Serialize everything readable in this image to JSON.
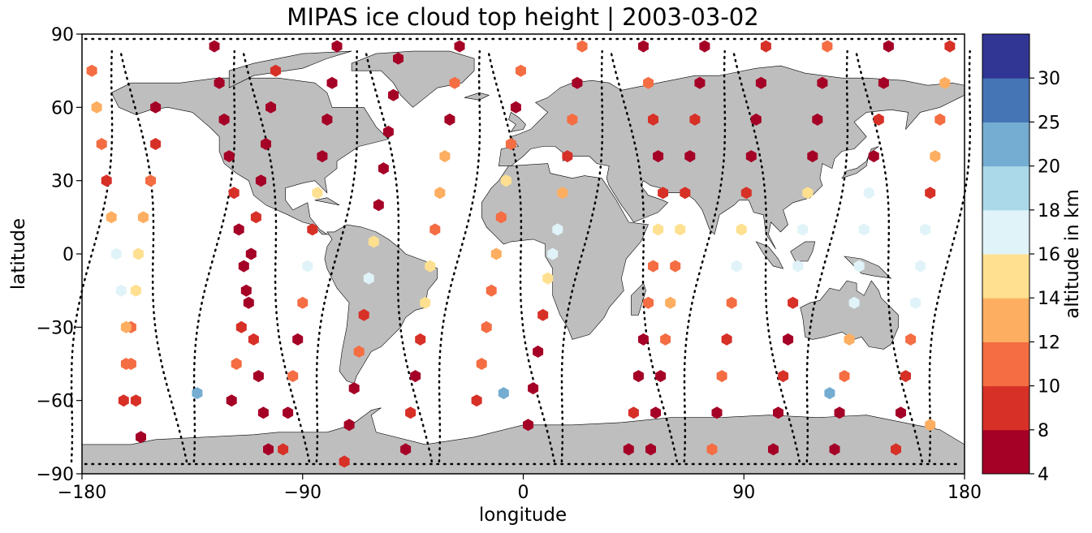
{
  "chart_data": {
    "type": "scatter",
    "title": "MIPAS ice cloud top height | 2003-03-02",
    "xlabel": "longitude",
    "ylabel": "latitude",
    "xlim": [
      -180,
      180
    ],
    "ylim": [
      -90,
      90
    ],
    "xticks": [
      -180,
      -90,
      0,
      90,
      180
    ],
    "yticks": [
      -90,
      -60,
      -30,
      0,
      30,
      60,
      90
    ],
    "xtick_labels": [
      "−180",
      "−90",
      "0",
      "90",
      "180"
    ],
    "ytick_labels": [
      "−90",
      "−60",
      "−30",
      "0",
      "30",
      "60",
      "90"
    ],
    "grid": false,
    "colorbar": {
      "label": "altitude in km",
      "bounds": [
        4,
        8,
        10,
        12,
        14,
        16,
        18,
        20,
        25,
        30
      ],
      "tick_labels": [
        "4",
        "8",
        "10",
        "12",
        "14",
        "16",
        "18",
        "20",
        "25",
        "30"
      ],
      "colors": [
        "#a50026",
        "#d73027",
        "#f46d43",
        "#fdae61",
        "#fee090",
        "#e0f3f8",
        "#abd9e9",
        "#74add1",
        "#4575b4",
        "#313695"
      ]
    },
    "colors": {
      "land": "#bebebe",
      "coast": "#000000",
      "track": "#000000"
    },
    "tracks": [
      {
        "lon": -176,
        "dir": 1
      },
      {
        "lon": -151,
        "dir": -1
      },
      {
        "lon": -126,
        "dir": 1
      },
      {
        "lon": -101,
        "dir": -1
      },
      {
        "lon": -76,
        "dir": 1
      },
      {
        "lon": -51,
        "dir": -1
      },
      {
        "lon": -26,
        "dir": 1
      },
      {
        "lon": -1,
        "dir": -1
      },
      {
        "lon": 24,
        "dir": 1
      },
      {
        "lon": 49,
        "dir": -1
      },
      {
        "lon": 74,
        "dir": 1
      },
      {
        "lon": 99,
        "dir": -1
      },
      {
        "lon": 124,
        "dir": 1
      },
      {
        "lon": 149,
        "dir": -1
      },
      {
        "lon": 174,
        "dir": 1
      }
    ],
    "points": [
      [
        -150,
        60,
        6
      ],
      [
        -150,
        45,
        9
      ],
      [
        -152,
        30,
        11
      ],
      [
        -155,
        15,
        13
      ],
      [
        -157,
        0,
        15
      ],
      [
        -158,
        -15,
        14
      ],
      [
        -160,
        -30,
        11
      ],
      [
        -162,
        -45,
        10
      ],
      [
        -163,
        -60,
        9
      ],
      [
        -176,
        75,
        11
      ],
      [
        -174,
        60,
        12
      ],
      [
        -172,
        45,
        11
      ],
      [
        -170,
        30,
        9
      ],
      [
        -168,
        15,
        13
      ],
      [
        -166,
        0,
        16
      ],
      [
        -164,
        -15,
        17
      ],
      [
        -162,
        -30,
        12
      ],
      [
        -160,
        -45,
        11
      ],
      [
        -158,
        -60,
        9
      ],
      [
        -156,
        -75,
        6
      ],
      [
        -126,
        85,
        6
      ],
      [
        -124,
        70,
        6
      ],
      [
        -122,
        55,
        7
      ],
      [
        -120,
        40,
        6
      ],
      [
        -118,
        25,
        8
      ],
      [
        -116,
        10,
        6
      ],
      [
        -114,
        -5,
        6
      ],
      [
        -112,
        -20,
        6
      ],
      [
        -110,
        -35,
        8
      ],
      [
        -108,
        -50,
        6
      ],
      [
        -106,
        -65,
        6
      ],
      [
        -104,
        -80,
        6
      ],
      [
        -101,
        75,
        9
      ],
      [
        -103,
        60,
        6
      ],
      [
        -105,
        45,
        7
      ],
      [
        -107,
        30,
        6
      ],
      [
        -109,
        15,
        9
      ],
      [
        -111,
        0,
        6
      ],
      [
        -113,
        -15,
        6
      ],
      [
        -115,
        -30,
        9
      ],
      [
        -117,
        -45,
        10
      ],
      [
        -119,
        -60,
        6
      ],
      [
        -76,
        85,
        6
      ],
      [
        -78,
        70,
        6
      ],
      [
        -80,
        55,
        6
      ],
      [
        -82,
        40,
        6
      ],
      [
        -84,
        25,
        14
      ],
      [
        -86,
        10,
        9
      ],
      [
        -88,
        -5,
        17
      ],
      [
        -90,
        -20,
        10
      ],
      [
        -92,
        -35,
        6
      ],
      [
        -94,
        -50,
        11
      ],
      [
        -96,
        -65,
        6
      ],
      [
        -98,
        -80,
        9
      ],
      [
        -51,
        80,
        6
      ],
      [
        -53,
        65,
        6
      ],
      [
        -55,
        50,
        6
      ],
      [
        -57,
        35,
        6
      ],
      [
        -59,
        20,
        6
      ],
      [
        -61,
        5,
        15
      ],
      [
        -63,
        -10,
        17
      ],
      [
        -65,
        -25,
        9
      ],
      [
        -67,
        -40,
        11
      ],
      [
        -69,
        -55,
        6
      ],
      [
        -71,
        -70,
        6
      ],
      [
        -73,
        -85,
        8
      ],
      [
        -26,
        85,
        6
      ],
      [
        -28,
        70,
        10
      ],
      [
        -30,
        55,
        6
      ],
      [
        -32,
        40,
        13
      ],
      [
        -34,
        25,
        12
      ],
      [
        -36,
        10,
        11
      ],
      [
        -38,
        -5,
        15
      ],
      [
        -40,
        -20,
        14
      ],
      [
        -42,
        -35,
        8
      ],
      [
        -44,
        -50,
        6
      ],
      [
        -46,
        -65,
        8
      ],
      [
        -48,
        -80,
        6
      ],
      [
        -1,
        75,
        11
      ],
      [
        -3,
        60,
        6
      ],
      [
        -5,
        45,
        11
      ],
      [
        -7,
        30,
        14
      ],
      [
        -9,
        15,
        10
      ],
      [
        -11,
        0,
        13
      ],
      [
        -13,
        -15,
        11
      ],
      [
        -15,
        -30,
        11
      ],
      [
        -17,
        -45,
        10
      ],
      [
        -19,
        -60,
        9
      ],
      [
        -8,
        -57,
        20
      ],
      [
        24,
        85,
        10
      ],
      [
        22,
        70,
        6
      ],
      [
        20,
        55,
        11
      ],
      [
        18,
        40,
        8
      ],
      [
        16,
        25,
        12
      ],
      [
        14,
        10,
        16
      ],
      [
        12,
        0,
        17
      ],
      [
        10,
        -10,
        14
      ],
      [
        8,
        -25,
        9
      ],
      [
        6,
        -40,
        6
      ],
      [
        4,
        -55,
        6
      ],
      [
        2,
        -70,
        6
      ],
      [
        49,
        85,
        6
      ],
      [
        51,
        70,
        10
      ],
      [
        53,
        55,
        9
      ],
      [
        55,
        40,
        6
      ],
      [
        57,
        25,
        9
      ],
      [
        55,
        10,
        14
      ],
      [
        53,
        -5,
        11
      ],
      [
        51,
        -20,
        11
      ],
      [
        49,
        -35,
        6
      ],
      [
        47,
        -50,
        6
      ],
      [
        45,
        -65,
        9
      ],
      [
        43,
        -80,
        6
      ],
      [
        74,
        85,
        6
      ],
      [
        72,
        70,
        6
      ],
      [
        70,
        55,
        9
      ],
      [
        68,
        40,
        6
      ],
      [
        66,
        25,
        8
      ],
      [
        64,
        10,
        15
      ],
      [
        62,
        -5,
        11
      ],
      [
        60,
        -20,
        12
      ],
      [
        58,
        -35,
        11
      ],
      [
        56,
        -50,
        6
      ],
      [
        54,
        -65,
        6
      ],
      [
        52,
        -80,
        6
      ],
      [
        99,
        85,
        8
      ],
      [
        97,
        70,
        6
      ],
      [
        95,
        55,
        6
      ],
      [
        93,
        40,
        6
      ],
      [
        91,
        25,
        9
      ],
      [
        89,
        10,
        15
      ],
      [
        87,
        -5,
        17
      ],
      [
        85,
        -20,
        11
      ],
      [
        83,
        -35,
        9
      ],
      [
        81,
        -50,
        10
      ],
      [
        79,
        -65,
        6
      ],
      [
        77,
        -80,
        10
      ],
      [
        124,
        85,
        11
      ],
      [
        122,
        70,
        6
      ],
      [
        120,
        55,
        7
      ],
      [
        118,
        40,
        6
      ],
      [
        116,
        25,
        14
      ],
      [
        114,
        10,
        17
      ],
      [
        112,
        -5,
        17
      ],
      [
        110,
        -20,
        9
      ],
      [
        108,
        -35,
        6
      ],
      [
        106,
        -50,
        8
      ],
      [
        104,
        -65,
        6
      ],
      [
        102,
        -80,
        6
      ],
      [
        149,
        85,
        6
      ],
      [
        147,
        70,
        6
      ],
      [
        145,
        55,
        9
      ],
      [
        143,
        40,
        6
      ],
      [
        141,
        25,
        17
      ],
      [
        139,
        10,
        17
      ],
      [
        137,
        -5,
        17
      ],
      [
        135,
        -20,
        16
      ],
      [
        133,
        -35,
        12
      ],
      [
        131,
        -50,
        10
      ],
      [
        129,
        -65,
        6
      ],
      [
        127,
        -80,
        6
      ],
      [
        174,
        85,
        9
      ],
      [
        172,
        70,
        13
      ],
      [
        170,
        55,
        10
      ],
      [
        168,
        40,
        12
      ],
      [
        166,
        25,
        8
      ],
      [
        164,
        10,
        16
      ],
      [
        162,
        -5,
        17
      ],
      [
        160,
        -20,
        16
      ],
      [
        158,
        -35,
        10
      ],
      [
        156,
        -50,
        9
      ],
      [
        154,
        -65,
        6
      ],
      [
        152,
        -80,
        9
      ],
      [
        -133,
        -57,
        20
      ],
      [
        125,
        -57,
        20
      ],
      [
        166,
        -70,
        12
      ]
    ]
  }
}
